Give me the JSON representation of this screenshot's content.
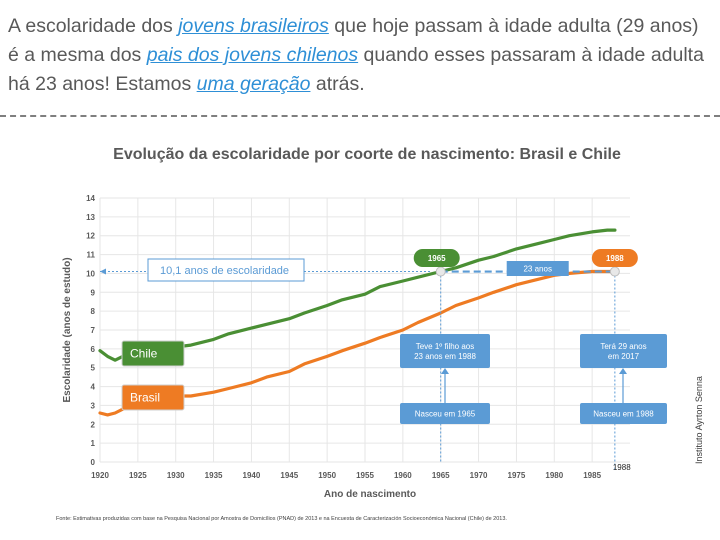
{
  "headline": {
    "p1": "A escolaridade dos ",
    "k1": "jovens brasileiros",
    "p2": " que hoje passam à idade adulta (29 anos) é a mesma dos ",
    "k2": "pais dos jovens chilenos",
    "p3": " quando esses passaram à idade adulta há 23 anos! Estamos ",
    "k3": "uma geração",
    "p4": " atrás."
  },
  "colors": {
    "chile": "#4a8f34",
    "brasil": "#ee7b23",
    "annotation": "#5b9bd5",
    "axis": "#595959",
    "headline_key": "#2e8fd6"
  },
  "chart_data": {
    "type": "line",
    "title": "Evolução da escolaridade por coorte de nascimento: Brasil e Chile",
    "xlabel": "Ano de nascimento",
    "ylabel": "Escolaridade (anos de estudo)",
    "xlim": [
      1920,
      1990
    ],
    "ylim": [
      0,
      14
    ],
    "xticks": [
      1920,
      1925,
      1930,
      1935,
      1940,
      1945,
      1950,
      1955,
      1960,
      1965,
      1970,
      1975,
      1980,
      1985
    ],
    "yticks": [
      0,
      1,
      2,
      3,
      4,
      5,
      6,
      7,
      8,
      9,
      10,
      11,
      12,
      13,
      14
    ],
    "grid": true,
    "series": [
      {
        "name": "Chile",
        "x": [
          1920,
          1921,
          1922,
          1923,
          1925,
          1928,
          1930,
          1932,
          1935,
          1937,
          1940,
          1942,
          1945,
          1947,
          1950,
          1952,
          1955,
          1957,
          1960,
          1962,
          1965,
          1967,
          1970,
          1972,
          1975,
          1978,
          1980,
          1982,
          1985,
          1987,
          1988
        ],
        "y": [
          5.9,
          5.6,
          5.4,
          5.6,
          5.8,
          6.0,
          6.1,
          6.2,
          6.5,
          6.8,
          7.1,
          7.3,
          7.6,
          7.9,
          8.3,
          8.6,
          8.9,
          9.3,
          9.6,
          9.8,
          10.1,
          10.3,
          10.7,
          10.9,
          11.3,
          11.6,
          11.8,
          12.0,
          12.2,
          12.3,
          12.3
        ]
      },
      {
        "name": "Brasil",
        "x": [
          1920,
          1921,
          1922,
          1923,
          1925,
          1928,
          1930,
          1932,
          1935,
          1937,
          1940,
          1942,
          1945,
          1947,
          1950,
          1952,
          1955,
          1957,
          1960,
          1962,
          1965,
          1967,
          1970,
          1972,
          1975,
          1978,
          1980,
          1982,
          1985,
          1987,
          1988
        ],
        "y": [
          2.6,
          2.5,
          2.6,
          2.8,
          3.0,
          3.3,
          3.5,
          3.5,
          3.7,
          3.9,
          4.2,
          4.5,
          4.8,
          5.2,
          5.6,
          5.9,
          6.3,
          6.6,
          7.0,
          7.4,
          7.9,
          8.3,
          8.7,
          9.0,
          9.4,
          9.7,
          9.9,
          10.0,
          10.1,
          10.1,
          10.1
        ]
      }
    ],
    "annotations": {
      "level": "10,1 anos de escolaridade",
      "gap": "23 anos",
      "year_a": "1965",
      "year_b": "1988",
      "born_a": "Nasceu em 1965",
      "born_b": "Nasceu em 1988",
      "child_a": "Teve 1º filho aos 23 anos em 1988",
      "age_b": "Terá 29 anos em 2017",
      "series_chile": "Chile",
      "series_brasil": "Brasil",
      "axis_extra": "1988"
    }
  },
  "credit": "Instituto Ayrton Senna",
  "source": "Fonte: Estimativas produzidas com base na Pesquisa Nacional por Amostra de Domicílios (PNAD) de 2013 e na Encuesta de Caracterización Socioeconómica Nacional (Chile) de 2013."
}
